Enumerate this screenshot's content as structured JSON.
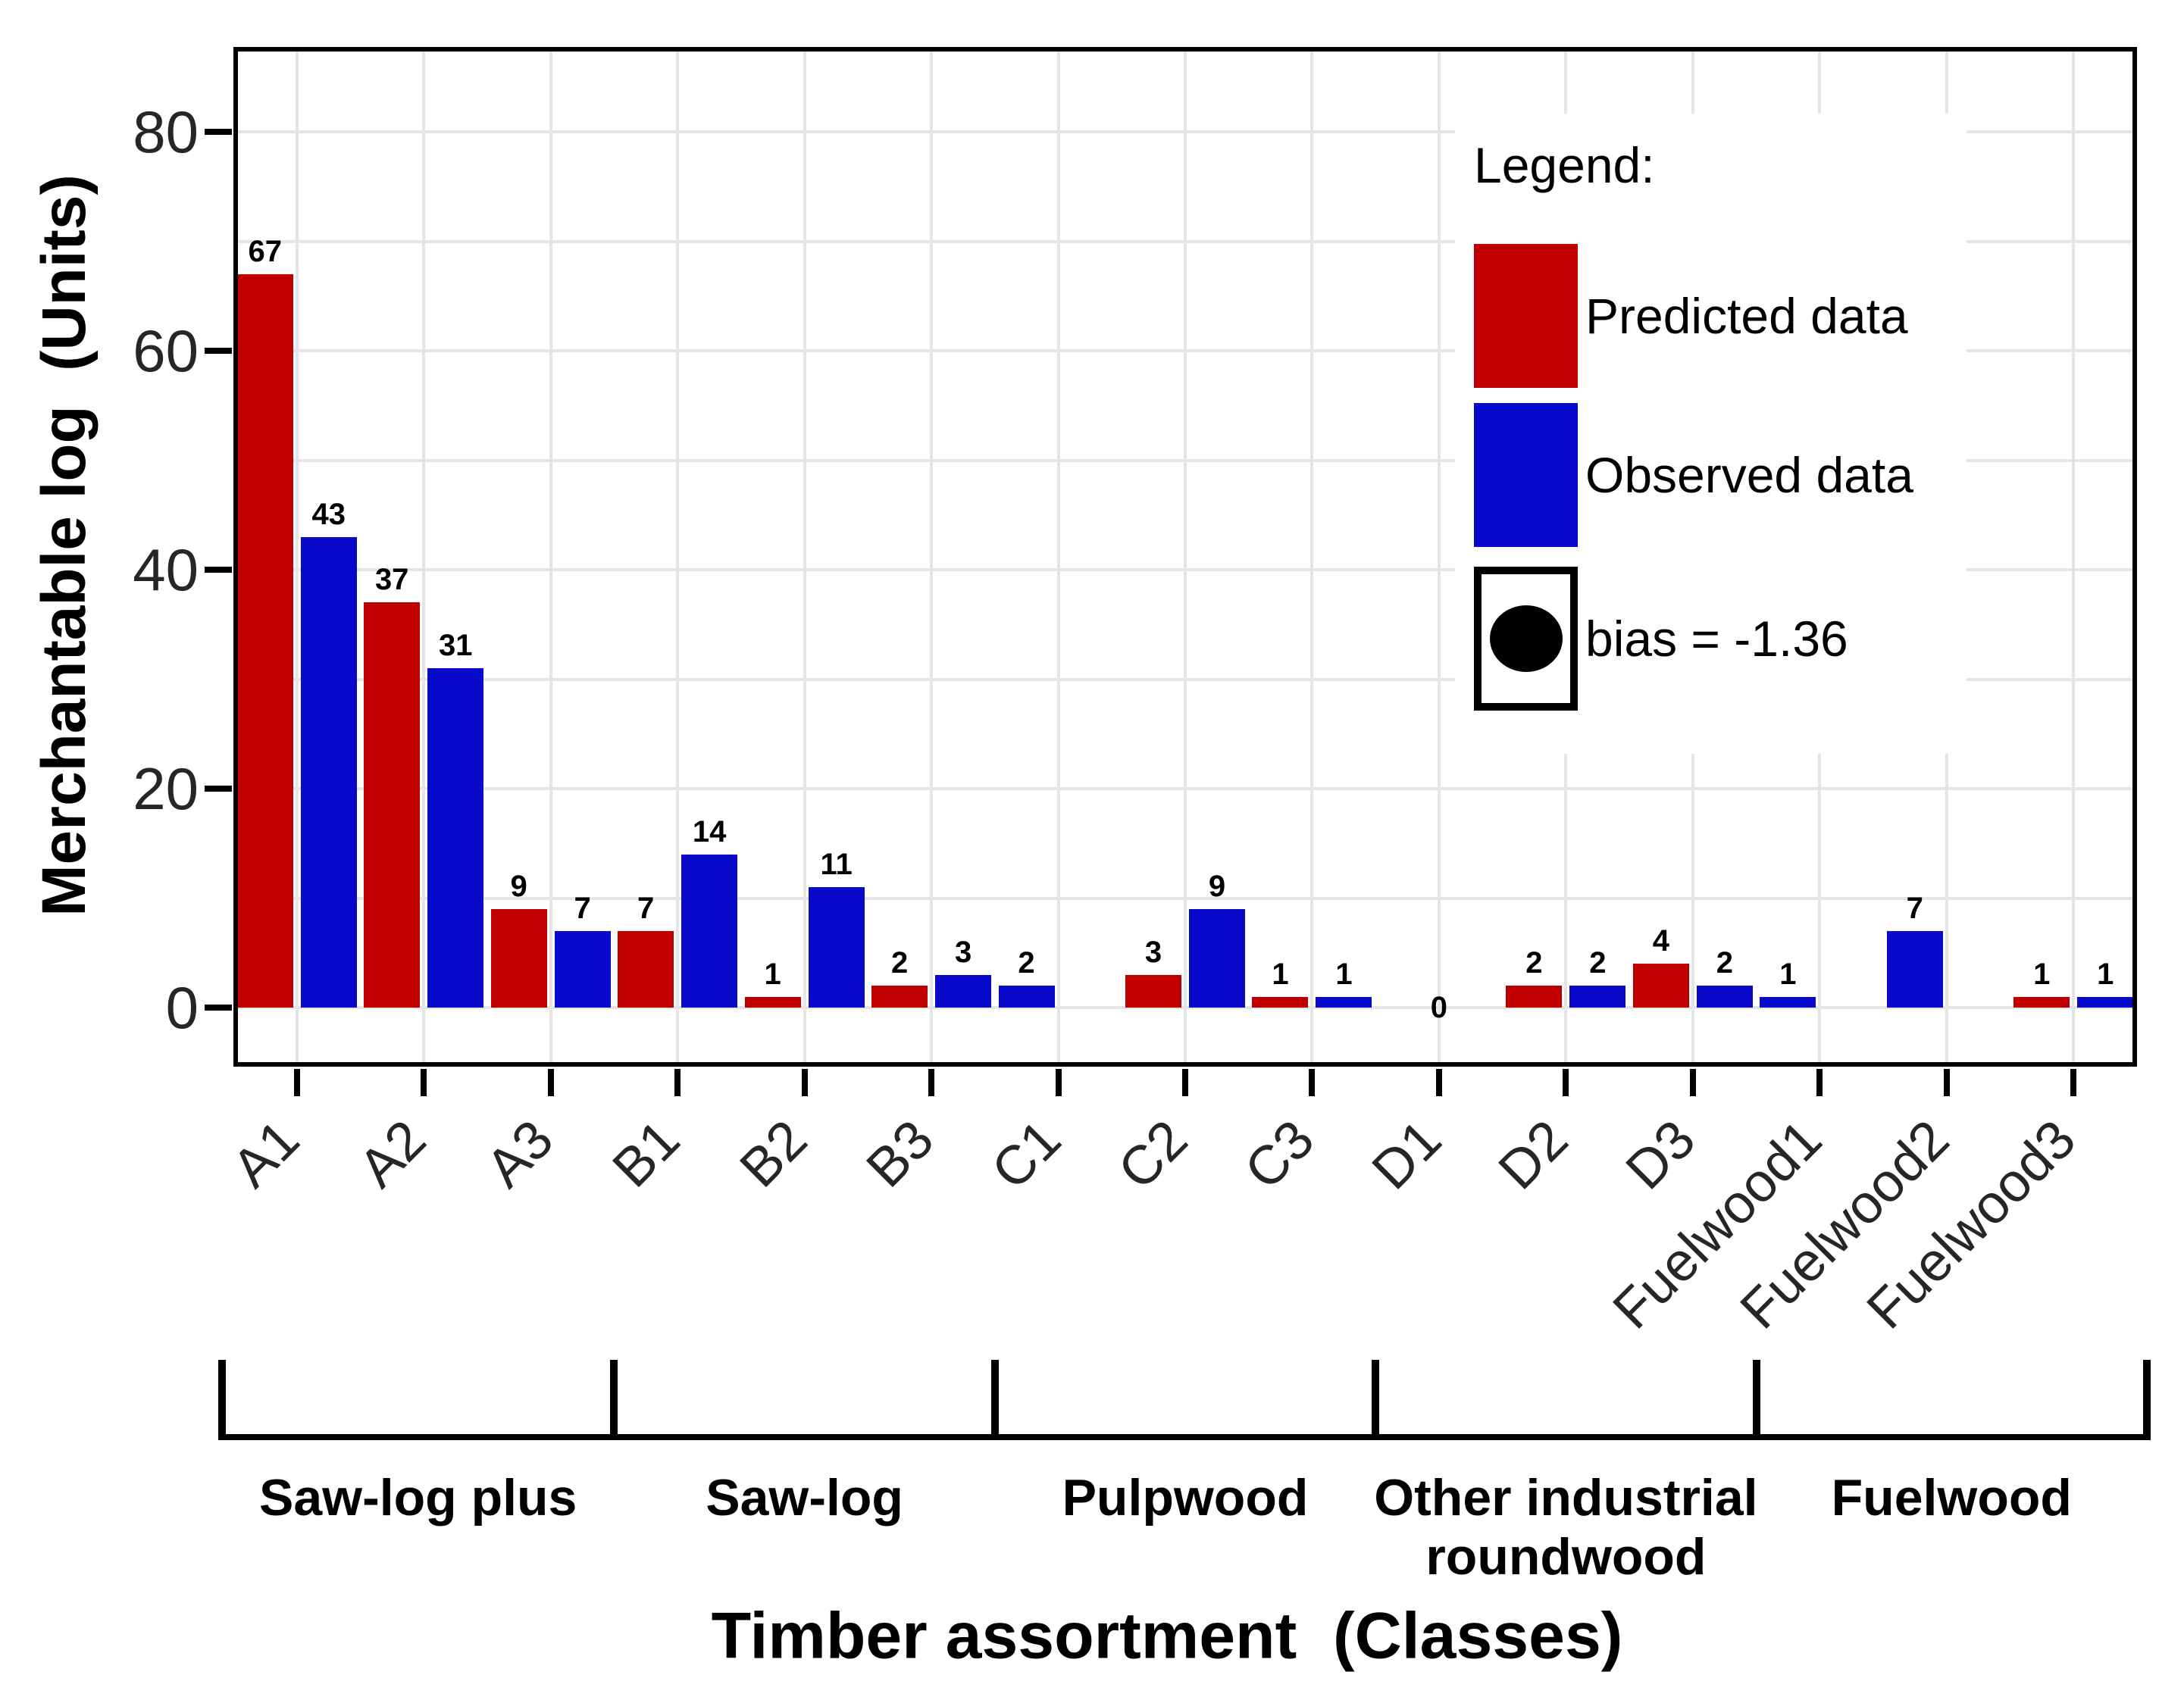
{
  "chart_data": {
    "type": "bar",
    "title": "",
    "xlabel": "Timber assortment  (Classes)",
    "ylabel": "Merchantable log  (Units)",
    "categories": [
      "A1",
      "A2",
      "A3",
      "B1",
      "B2",
      "B3",
      "C1",
      "C2",
      "C3",
      "D1",
      "D2",
      "D3",
      "Fuelwood1",
      "Fuelwood2",
      "Fuelwood3"
    ],
    "series": [
      {
        "name": "Predicted data",
        "color": "#C00000",
        "values": [
          67,
          37,
          9,
          7,
          1,
          2,
          null,
          3,
          1,
          0,
          2,
          4,
          null,
          null,
          1
        ]
      },
      {
        "name": "Observed data",
        "color": "#0909CC",
        "values": [
          43,
          31,
          7,
          14,
          11,
          3,
          2,
          9,
          1,
          0,
          2,
          2,
          1,
          7,
          1
        ]
      }
    ],
    "ylim": [
      0,
      80
    ],
    "yticks": [
      0,
      20,
      40,
      60,
      80
    ],
    "grid": "on",
    "gridline_step": 10,
    "legend": {
      "title": "Legend:",
      "position": "top-right-inside",
      "bias_label": "bias = -1.36",
      "bias_symbol": "filled-circle-in-box"
    },
    "groups": [
      {
        "label": "Saw-log plus",
        "lines": [
          "Saw-log plus"
        ],
        "from": 0,
        "to": 3
      },
      {
        "label": "Saw-log",
        "lines": [
          "Saw-log"
        ],
        "from": 3,
        "to": 6
      },
      {
        "label": "Pulpwood",
        "lines": [
          "Pulpwood"
        ],
        "from": 6,
        "to": 9
      },
      {
        "label": "Other industrial roundwood",
        "lines": [
          "Other industrial",
          "roundwood"
        ],
        "from": 9,
        "to": 12
      },
      {
        "label": "Fuelwood",
        "lines": [
          "Fuelwood"
        ],
        "from": 12,
        "to": 15
      }
    ]
  }
}
